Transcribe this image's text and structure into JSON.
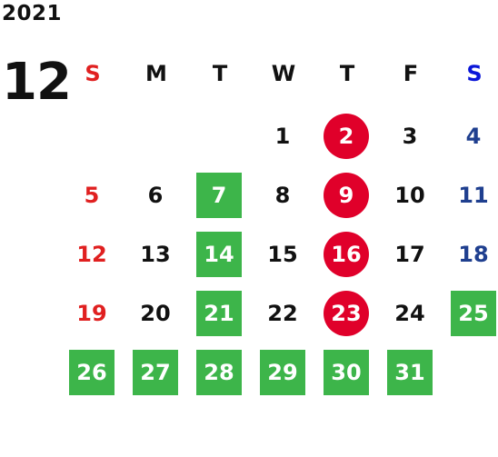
{
  "year": "2021",
  "month": "12",
  "weekday_headers": [
    {
      "label": "S",
      "color": "#e02020"
    },
    {
      "label": "M",
      "color": "#111111"
    },
    {
      "label": "T",
      "color": "#111111"
    },
    {
      "label": "W",
      "color": "#111111"
    },
    {
      "label": "T",
      "color": "#111111"
    },
    {
      "label": "F",
      "color": "#111111"
    },
    {
      "label": "S",
      "color": "#0a16d8"
    }
  ],
  "colors": {
    "green": "#3db54a",
    "red": "#e0002a",
    "sunday": "#e02020",
    "saturday": "#1f3f8f"
  },
  "weeks": [
    [
      null,
      null,
      null,
      {
        "d": "1"
      },
      {
        "d": "2",
        "mark": "red"
      },
      {
        "d": "3"
      },
      {
        "d": "4"
      }
    ],
    [
      {
        "d": "5"
      },
      {
        "d": "6"
      },
      {
        "d": "7",
        "mark": "green"
      },
      {
        "d": "8"
      },
      {
        "d": "9",
        "mark": "red"
      },
      {
        "d": "10"
      },
      {
        "d": "11"
      }
    ],
    [
      {
        "d": "12"
      },
      {
        "d": "13"
      },
      {
        "d": "14",
        "mark": "green"
      },
      {
        "d": "15"
      },
      {
        "d": "16",
        "mark": "red"
      },
      {
        "d": "17"
      },
      {
        "d": "18"
      }
    ],
    [
      {
        "d": "19"
      },
      {
        "d": "20"
      },
      {
        "d": "21",
        "mark": "green"
      },
      {
        "d": "22"
      },
      {
        "d": "23",
        "mark": "red"
      },
      {
        "d": "24"
      },
      {
        "d": "25",
        "mark": "green"
      }
    ],
    [
      {
        "d": "26",
        "mark": "green"
      },
      {
        "d": "27",
        "mark": "green"
      },
      {
        "d": "28",
        "mark": "green"
      },
      {
        "d": "29",
        "mark": "green"
      },
      {
        "d": "30",
        "mark": "green"
      },
      {
        "d": "31",
        "mark": "green"
      },
      null
    ]
  ]
}
